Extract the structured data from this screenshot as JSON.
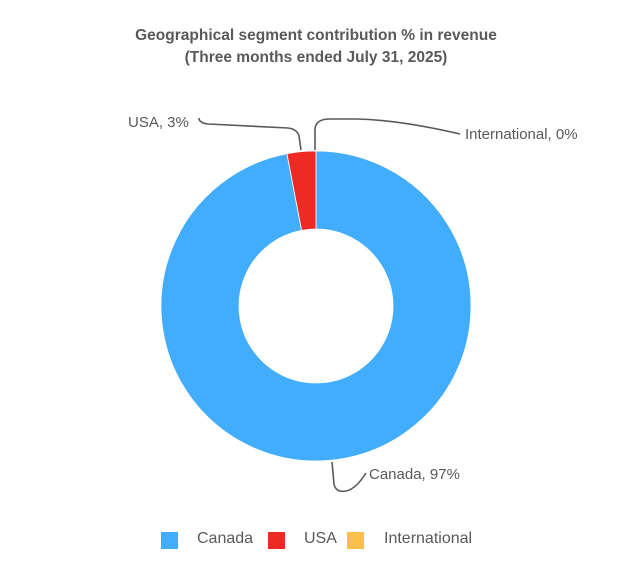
{
  "chart_data": {
    "type": "pie",
    "subtype": "donut",
    "title": "Geographical segment contribution % in revenue",
    "subtitle": "(Three months ended July 31, 2025)",
    "categories": [
      "Canada",
      "USA",
      "International"
    ],
    "values": [
      97,
      3,
      0
    ],
    "unit": "%",
    "colors": [
      "#42ADFD",
      "#EE2A24",
      "#FBC04C"
    ],
    "data_labels": [
      "Canada, 97%",
      "USA, 3%",
      "International, 0%"
    ],
    "legend_position": "bottom"
  },
  "title": {
    "line1": "Geographical segment contribution % in revenue",
    "line2": "(Three months ended July 31, 2025)"
  },
  "labels": {
    "canada": "Canada, 97%",
    "usa": "USA, 3%",
    "international": "International, 0%"
  },
  "legend": {
    "items": [
      {
        "label": "Canada",
        "color": "#42ADFD"
      },
      {
        "label": "USA",
        "color": "#EE2A24"
      },
      {
        "label": "International",
        "color": "#FBC04C"
      }
    ]
  }
}
